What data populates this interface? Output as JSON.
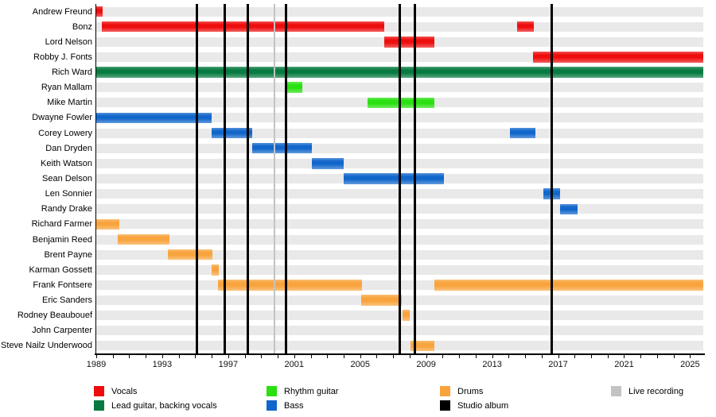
{
  "chart_data": {
    "type": "timeline",
    "title": "",
    "axis": {
      "year_start": 1989,
      "year_end": 2025.8,
      "year_labels": [
        1989,
        1993,
        1997,
        2001,
        2005,
        2009,
        2013,
        2017,
        2021,
        2025
      ],
      "minor_tick_step": 1
    },
    "band_members": [
      {
        "name": "Andrew Freund",
        "role": "Vocals",
        "color": "vocals",
        "stints": [
          [
            1989.0,
            1989.4
          ]
        ]
      },
      {
        "name": "Bonz",
        "role": "Vocals",
        "color": "vocals",
        "stints": [
          [
            1989.35,
            2006.45
          ],
          [
            2014.5,
            2015.55
          ]
        ]
      },
      {
        "name": "Lord Nelson",
        "role": "Vocals",
        "color": "vocals",
        "stints": [
          [
            2006.45,
            2009.5
          ]
        ]
      },
      {
        "name": "Robby J. Fonts",
        "role": "Vocals",
        "color": "vocals",
        "stints": [
          [
            2015.5,
            2025.8
          ]
        ]
      },
      {
        "name": "Rich Ward",
        "role": "Lead guitar, backing vocals",
        "color": "lead_guitar",
        "stints": [
          [
            1989.0,
            2025.8
          ]
        ]
      },
      {
        "name": "Ryan Mallam",
        "role": "Rhythm guitar",
        "color": "rhythm_guitar",
        "stints": [
          [
            2000.45,
            2001.5
          ]
        ]
      },
      {
        "name": "Mike Martin",
        "role": "Rhythm guitar",
        "color": "rhythm_guitar",
        "stints": [
          [
            2005.45,
            2009.5
          ]
        ]
      },
      {
        "name": "Dwayne Fowler",
        "role": "Bass",
        "color": "bass",
        "stints": [
          [
            1989.0,
            1996.0
          ]
        ]
      },
      {
        "name": "Corey Lowery",
        "role": "Bass",
        "color": "bass",
        "stints": [
          [
            1996.0,
            1998.45
          ],
          [
            2014.1,
            2015.6
          ]
        ]
      },
      {
        "name": "Dan Dryden",
        "role": "Bass",
        "color": "bass",
        "stints": [
          [
            1998.45,
            2002.05
          ]
        ]
      },
      {
        "name": "Keith Watson",
        "role": "Bass",
        "color": "bass",
        "stints": [
          [
            2002.05,
            2004.0
          ]
        ]
      },
      {
        "name": "Sean Delson",
        "role": "Bass",
        "color": "bass",
        "stints": [
          [
            2004.0,
            2010.1
          ]
        ]
      },
      {
        "name": "Len Sonnier",
        "role": "Bass",
        "color": "bass",
        "stints": [
          [
            2016.1,
            2017.1
          ]
        ]
      },
      {
        "name": "Randy Drake",
        "role": "Bass",
        "color": "bass",
        "stints": [
          [
            2017.1,
            2018.2
          ]
        ]
      },
      {
        "name": "Richard Farmer",
        "role": "Drums",
        "color": "drums",
        "stints": [
          [
            1989.0,
            1990.4
          ]
        ]
      },
      {
        "name": "Benjamin Reed",
        "role": "Drums",
        "color": "drums",
        "stints": [
          [
            1990.3,
            1993.45
          ]
        ]
      },
      {
        "name": "Brent Payne",
        "role": "Drums",
        "color": "drums",
        "stints": [
          [
            1993.35,
            1996.05
          ]
        ]
      },
      {
        "name": "Karman Gossett",
        "role": "Drums",
        "color": "drums",
        "stints": [
          [
            1996.0,
            1996.45
          ]
        ]
      },
      {
        "name": "Frank Fontsere",
        "role": "Drums",
        "color": "drums",
        "stints": [
          [
            1996.4,
            2005.1
          ],
          [
            2009.5,
            2025.8
          ]
        ]
      },
      {
        "name": "Eric Sanders",
        "role": "Drums",
        "color": "drums",
        "stints": [
          [
            2005.05,
            2007.5
          ]
        ]
      },
      {
        "name": "Rodney Beaubouef",
        "role": "Drums",
        "color": "drums",
        "stints": [
          [
            2007.55,
            2008.0
          ]
        ]
      },
      {
        "name": "John Carpenter",
        "role": "Drums",
        "color": "drums",
        "stints": []
      },
      {
        "name": "Steve Nailz Underwood",
        "role": "Drums",
        "color": "drums",
        "stints": [
          [
            2008.05,
            2009.5
          ]
        ]
      }
    ],
    "events": {
      "studio_albums": [
        1995.1,
        1996.8,
        1998.2,
        2000.5,
        2007.4,
        2008.3,
        2016.6
      ],
      "live_recordings": [
        1999.8
      ]
    },
    "legend": {
      "columns": [
        [
          {
            "label": "Vocals",
            "color": "vocals"
          },
          {
            "label": "Lead guitar, backing vocals",
            "color": "lead_guitar"
          }
        ],
        [
          {
            "label": "Rhythm guitar",
            "color": "rhythm_guitar"
          },
          {
            "label": "Bass",
            "color": "bass"
          }
        ],
        [
          {
            "label": "Drums",
            "color": "drums"
          },
          {
            "label": "Studio album",
            "color": "studio_album"
          }
        ],
        [
          {
            "label": "Live recording",
            "color": "live_recording"
          }
        ]
      ]
    }
  },
  "colors": {
    "vocals": "#ee0d0d",
    "lead_guitar": "#067a40",
    "rhythm_guitar": "#29e010",
    "bass": "#1166cb",
    "drums": "#f8a33c",
    "studio_album": "#000000",
    "live_recording": "#c3c3c3",
    "row_band": "#e9e9e9",
    "background": "#ffffff"
  }
}
